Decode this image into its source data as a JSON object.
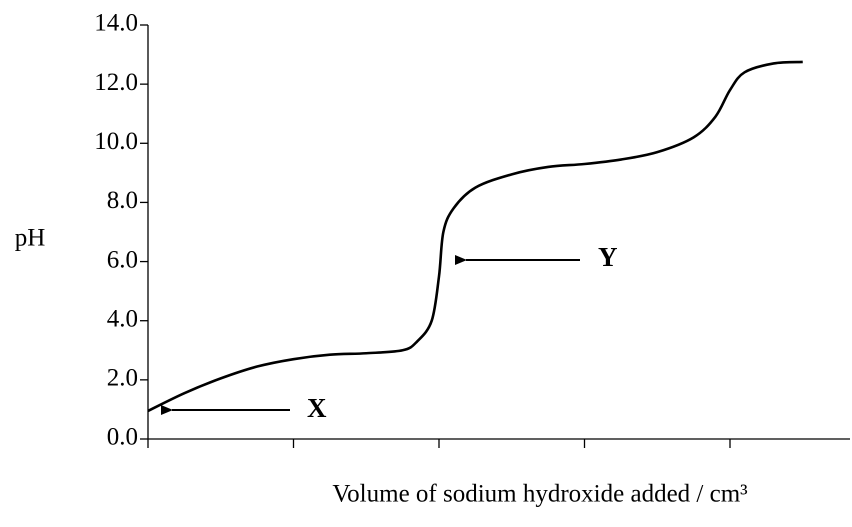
{
  "chart_data": {
    "type": "line",
    "ylabel": "pH",
    "xlabel": "Volume of sodium hydroxide added / cm³",
    "x": [
      0,
      0.25,
      0.5,
      0.75,
      1.0,
      1.25,
      1.5,
      1.75,
      1.85,
      1.95,
      2.0,
      2.03,
      2.1,
      2.25,
      2.5,
      2.75,
      3.0,
      3.25,
      3.5,
      3.75,
      3.9,
      4.0,
      4.1,
      4.3,
      4.5
    ],
    "series": [
      {
        "color": "#000000",
        "values": [
          0.95,
          1.55,
          2.05,
          2.45,
          2.7,
          2.85,
          2.9,
          3.0,
          3.3,
          4.0,
          5.5,
          7.0,
          7.8,
          8.5,
          8.95,
          9.2,
          9.3,
          9.45,
          9.7,
          10.2,
          10.9,
          11.8,
          12.4,
          12.7,
          12.75
        ]
      }
    ],
    "xlim": [
      0,
      4.82
    ],
    "xticks": [
      0,
      1,
      2,
      3,
      4
    ],
    "ylim": [
      0,
      14
    ],
    "yticks": [
      {
        "value": 0,
        "label": "0.0"
      },
      {
        "value": 2,
        "label": "2.0"
      },
      {
        "value": 4,
        "label": "4.0"
      },
      {
        "value": 6,
        "label": "6.0"
      },
      {
        "value": 8,
        "label": "8.0"
      },
      {
        "value": 10,
        "label": "10.0"
      },
      {
        "value": 12,
        "label": "12.0"
      },
      {
        "value": 14,
        "label": "14.0"
      }
    ],
    "annotations": [
      "X",
      "Y"
    ],
    "grid": false
  }
}
